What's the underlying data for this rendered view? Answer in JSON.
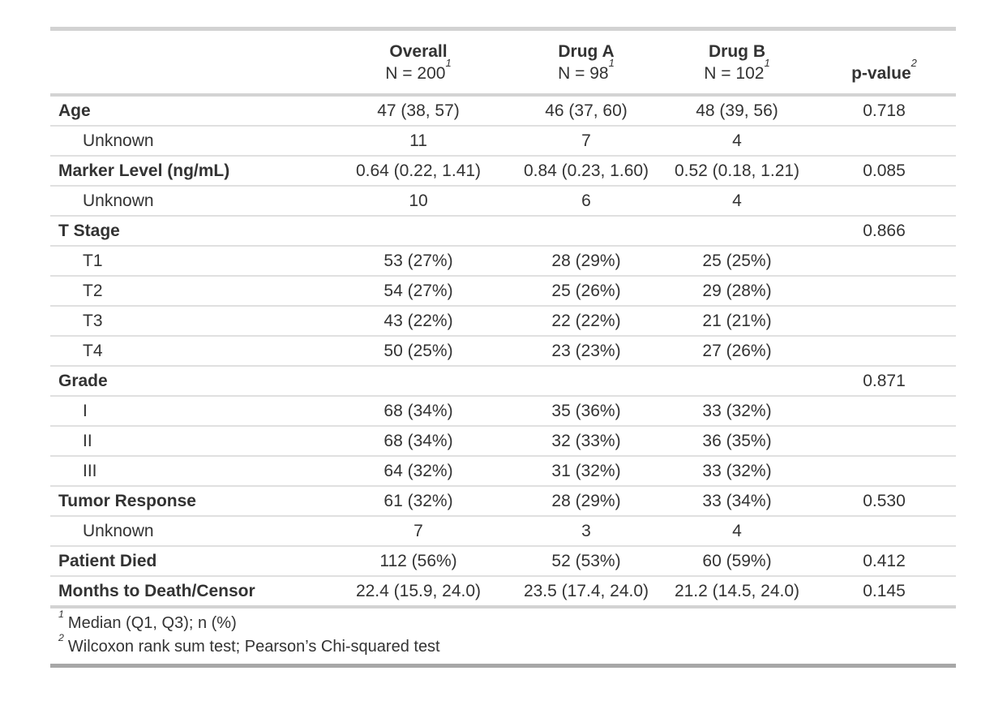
{
  "table": {
    "header": {
      "columns": [
        {
          "name": ""
        },
        {
          "name": "Overall",
          "n": "N = 200",
          "ref": "1"
        },
        {
          "name": "Drug A",
          "n": "N = 98",
          "ref": "1"
        },
        {
          "name": "Drug B",
          "n": "N = 102",
          "ref": "1"
        },
        {
          "name": "p-value",
          "ref": "2"
        }
      ]
    },
    "rows": [
      {
        "label": "Age",
        "overall": "47 (38, 57)",
        "drug_a": "46 (37, 60)",
        "drug_b": "48 (39, 56)",
        "p": "0.718"
      },
      {
        "label": "Unknown",
        "overall": "11",
        "drug_a": "7",
        "drug_b": "4",
        "p": ""
      },
      {
        "label": "Marker Level (ng/mL)",
        "overall": "0.64 (0.22, 1.41)",
        "drug_a": "0.84 (0.23, 1.60)",
        "drug_b": "0.52 (0.18, 1.21)",
        "p": "0.085"
      },
      {
        "label": "Unknown",
        "overall": "10",
        "drug_a": "6",
        "drug_b": "4",
        "p": ""
      },
      {
        "label": "T Stage",
        "overall": "",
        "drug_a": "",
        "drug_b": "",
        "p": "0.866"
      },
      {
        "label": "T1",
        "overall": "53 (27%)",
        "drug_a": "28 (29%)",
        "drug_b": "25 (25%)",
        "p": ""
      },
      {
        "label": "T2",
        "overall": "54 (27%)",
        "drug_a": "25 (26%)",
        "drug_b": "29 (28%)",
        "p": ""
      },
      {
        "label": "T3",
        "overall": "43 (22%)",
        "drug_a": "22 (22%)",
        "drug_b": "21 (21%)",
        "p": ""
      },
      {
        "label": "T4",
        "overall": "50 (25%)",
        "drug_a": "23 (23%)",
        "drug_b": "27 (26%)",
        "p": ""
      },
      {
        "label": "Grade",
        "overall": "",
        "drug_a": "",
        "drug_b": "",
        "p": "0.871"
      },
      {
        "label": "I",
        "overall": "68 (34%)",
        "drug_a": "35 (36%)",
        "drug_b": "33 (32%)",
        "p": ""
      },
      {
        "label": "II",
        "overall": "68 (34%)",
        "drug_a": "32 (33%)",
        "drug_b": "36 (35%)",
        "p": ""
      },
      {
        "label": "III",
        "overall": "64 (32%)",
        "drug_a": "31 (32%)",
        "drug_b": "33 (32%)",
        "p": ""
      },
      {
        "label": "Tumor Response",
        "overall": "61 (32%)",
        "drug_a": "28 (29%)",
        "drug_b": "33 (34%)",
        "p": "0.530"
      },
      {
        "label": "Unknown",
        "overall": "7",
        "drug_a": "3",
        "drug_b": "4",
        "p": ""
      },
      {
        "label": "Patient Died",
        "overall": "112 (56%)",
        "drug_a": "52 (53%)",
        "drug_b": "60 (59%)",
        "p": "0.412"
      },
      {
        "label": "Months to Death/Censor",
        "overall": "22.4 (15.9, 24.0)",
        "drug_a": "23.5 (17.4, 24.0)",
        "drug_b": "21.2 (14.5, 24.0)",
        "p": "0.145"
      }
    ],
    "footnotes": [
      {
        "ref": "1",
        "text": "Median (Q1, Q3); n (%)"
      },
      {
        "ref": "2",
        "text": "Wilcoxon rank sum test; Pearson’s Chi-squared test"
      }
    ],
    "style": {
      "text_color": "#333333",
      "border_top_color": "#D2D2D2",
      "border_bottom_color": "#A7A7A7",
      "row_line_color": "#E0E0E0",
      "section_line_color": "#D3D3D3"
    }
  }
}
